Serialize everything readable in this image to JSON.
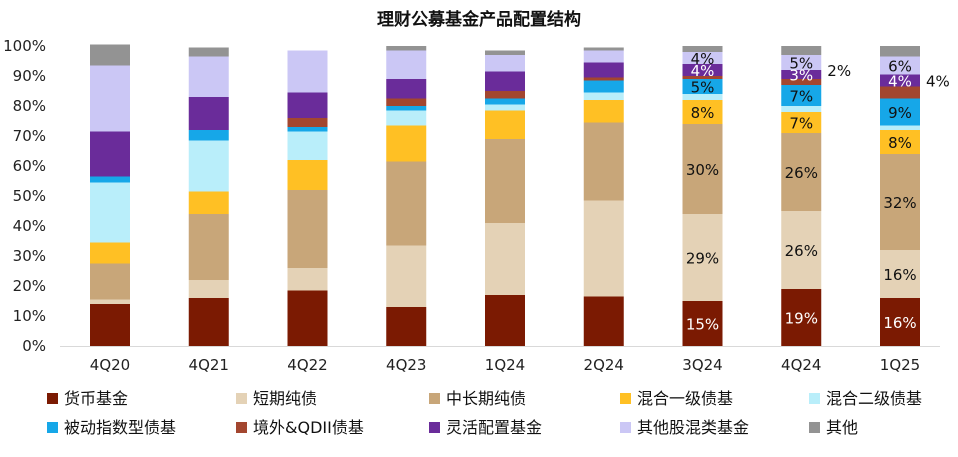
{
  "chart_data": {
    "type": "bar",
    "stacked": true,
    "title": "理财公募基金产品配置结构",
    "categories": [
      "4Q20",
      "4Q21",
      "4Q22",
      "4Q23",
      "1Q24",
      "2Q24",
      "3Q24",
      "4Q24",
      "1Q25"
    ],
    "ylim": [
      0,
      100
    ],
    "yticks": [
      "0%",
      "10%",
      "20%",
      "30%",
      "40%",
      "50%",
      "60%",
      "70%",
      "80%",
      "90%",
      "100%"
    ],
    "legend_position": "bottom",
    "series": [
      {
        "name": "货币基金",
        "color": "#7B1A02",
        "values": [
          14,
          16,
          18.5,
          13,
          17,
          16.5,
          15,
          19,
          16
        ]
      },
      {
        "name": "短期纯债",
        "color": "#E4D2B6",
        "values": [
          1.5,
          6,
          7.5,
          20.5,
          24,
          32,
          29,
          26,
          16
        ]
      },
      {
        "name": "中长期纯债",
        "color": "#C8A679",
        "values": [
          12,
          22,
          26,
          28,
          28,
          26,
          30,
          26,
          32
        ]
      },
      {
        "name": "混合一级债基",
        "color": "#FFC024",
        "values": [
          7,
          7.5,
          10,
          12,
          9.5,
          7.5,
          8,
          7,
          8
        ]
      },
      {
        "name": "混合二级债基",
        "color": "#B9EEFA",
        "values": [
          20,
          17,
          9.5,
          5,
          2,
          2.5,
          2,
          2,
          1.5
        ]
      },
      {
        "name": "被动指数型债基",
        "color": "#16A7E8",
        "values": [
          2,
          3.5,
          1.5,
          1.5,
          2,
          4,
          5,
          7,
          9
        ]
      },
      {
        "name": "境外&QDII债基",
        "color": "#A3462F",
        "values": [
          0,
          0,
          3,
          2.5,
          2.5,
          1,
          1,
          2,
          4
        ]
      },
      {
        "name": "灵活配置基金",
        "color": "#6A2C9A",
        "values": [
          15,
          11,
          8.5,
          6.5,
          6.5,
          5,
          4,
          3,
          4
        ]
      },
      {
        "name": "其他股混类基金",
        "color": "#CBC7F5",
        "values": [
          22,
          13.5,
          14,
          9.5,
          5.5,
          4,
          4,
          5,
          6
        ]
      },
      {
        "name": "其他",
        "color": "#939393",
        "values": [
          7,
          3,
          0,
          1.5,
          1.5,
          1,
          2,
          3,
          3.5
        ]
      }
    ],
    "data_labels": [
      {
        "category": "3Q24",
        "series": "货币基金",
        "text": "15%",
        "color": "#ffffff"
      },
      {
        "category": "3Q24",
        "series": "短期纯债",
        "text": "29%",
        "color": "#111111"
      },
      {
        "category": "3Q24",
        "series": "中长期纯债",
        "text": "30%",
        "color": "#111111"
      },
      {
        "category": "3Q24",
        "series": "混合一级债基",
        "text": "8%",
        "color": "#111111"
      },
      {
        "category": "3Q24",
        "series": "被动指数型债基",
        "text": "5%",
        "color": "#111111"
      },
      {
        "category": "3Q24",
        "series": "灵活配置基金",
        "text": "4%",
        "color": "#ffffff"
      },
      {
        "category": "3Q24",
        "series": "其他股混类基金",
        "text": "4%",
        "color": "#111111"
      },
      {
        "category": "4Q24",
        "series": "货币基金",
        "text": "19%",
        "color": "#ffffff"
      },
      {
        "category": "4Q24",
        "series": "短期纯债",
        "text": "26%",
        "color": "#111111"
      },
      {
        "category": "4Q24",
        "series": "中长期纯债",
        "text": "26%",
        "color": "#111111"
      },
      {
        "category": "4Q24",
        "series": "混合一级债基",
        "text": "7%",
        "color": "#111111"
      },
      {
        "category": "4Q24",
        "series": "被动指数型债基",
        "text": "7%",
        "color": "#111111"
      },
      {
        "category": "4Q24",
        "series": "境外&QDII债基",
        "text": "2%",
        "color": "#111111",
        "outside": true
      },
      {
        "category": "4Q24",
        "series": "灵活配置基金",
        "text": "3%",
        "color": "#ffffff"
      },
      {
        "category": "4Q24",
        "series": "其他股混类基金",
        "text": "5%",
        "color": "#111111"
      },
      {
        "category": "1Q25",
        "series": "货币基金",
        "text": "16%",
        "color": "#ffffff"
      },
      {
        "category": "1Q25",
        "series": "短期纯债",
        "text": "16%",
        "color": "#111111"
      },
      {
        "category": "1Q25",
        "series": "中长期纯债",
        "text": "32%",
        "color": "#111111"
      },
      {
        "category": "1Q25",
        "series": "混合一级债基",
        "text": "8%",
        "color": "#111111"
      },
      {
        "category": "1Q25",
        "series": "被动指数型债基",
        "text": "9%",
        "color": "#111111"
      },
      {
        "category": "1Q25",
        "series": "境外&QDII债基",
        "text": "4%",
        "color": "#111111",
        "outside": true
      },
      {
        "category": "1Q25",
        "series": "灵活配置基金",
        "text": "4%",
        "color": "#ffffff"
      },
      {
        "category": "1Q25",
        "series": "其他股混类基金",
        "text": "6%",
        "color": "#111111"
      }
    ]
  }
}
